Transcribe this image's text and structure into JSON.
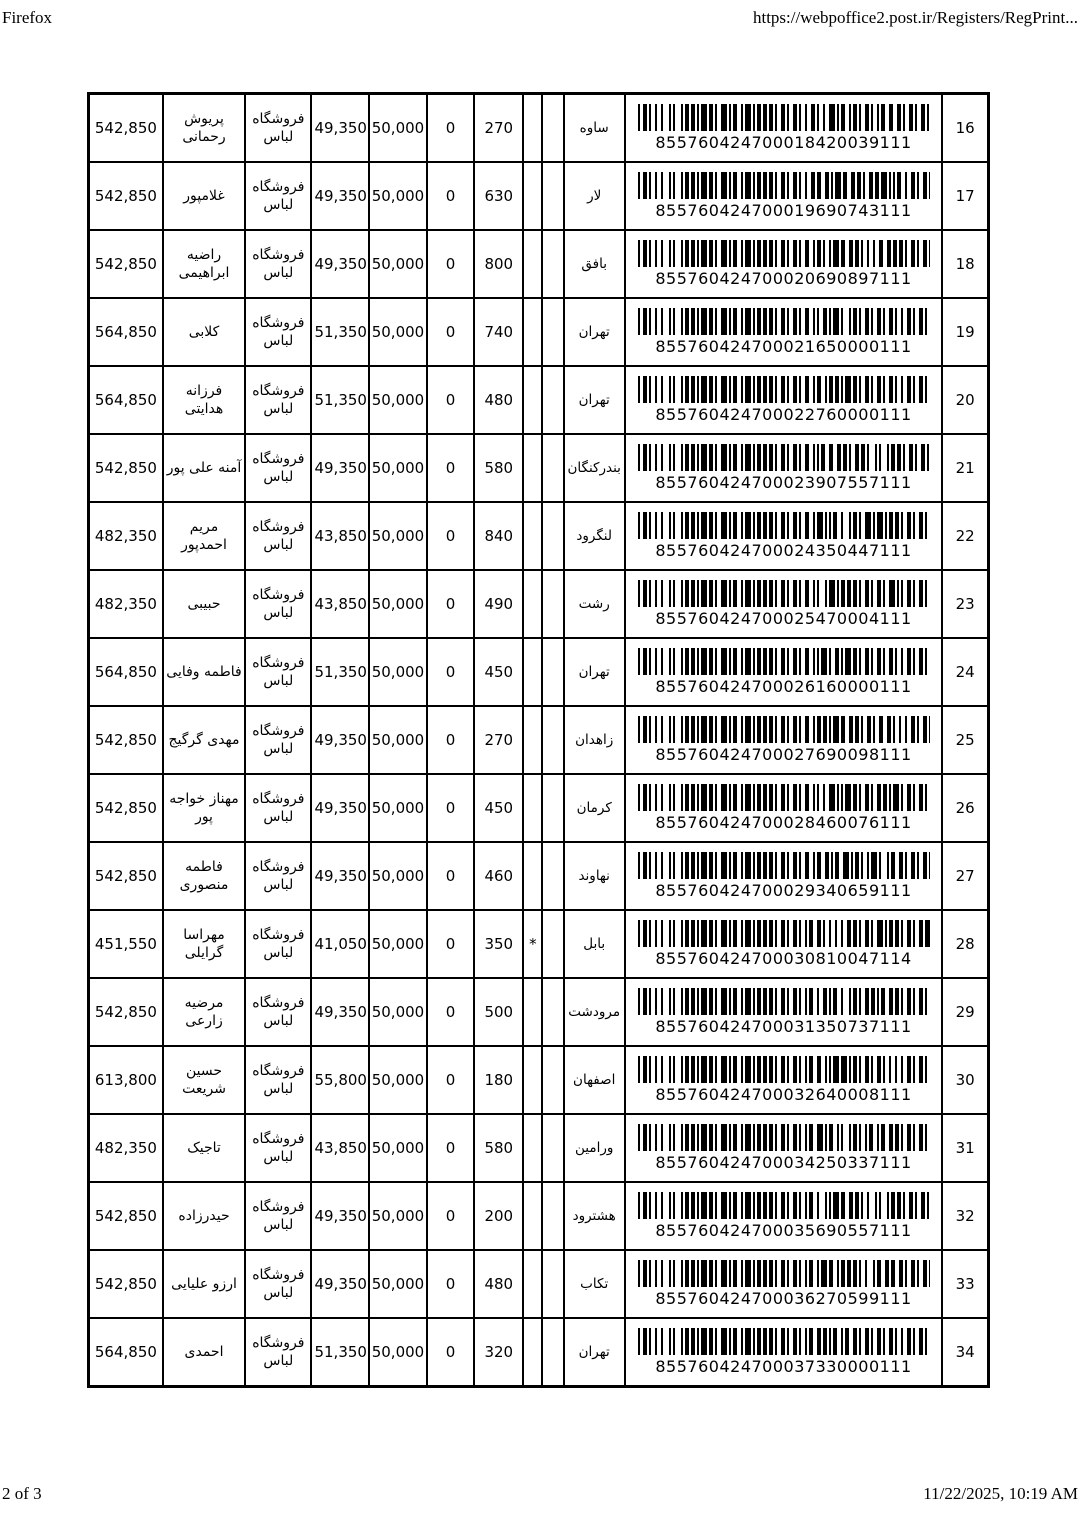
{
  "colors": {
    "border": "#000000",
    "text": "#000000",
    "background": "#ffffff"
  },
  "page_header": {
    "app_name": "Firefox",
    "url": "https://webpoffice2.post.ir/Registers/RegPrint..."
  },
  "page_footer": {
    "page_info": "2 of 3",
    "datetime": "11/22/2025, 10:19 AM"
  },
  "table": {
    "rows": [
      {
        "no": "16",
        "total": "542,850",
        "name": "پریوش رحمانی",
        "store": "فروشگاه لباس",
        "postage": "49,350",
        "insured": "50,000",
        "vat": "0",
        "weight": "270",
        "mark": "",
        "city": "ساوه",
        "barcode": "855760424700018420039111"
      },
      {
        "no": "17",
        "total": "542,850",
        "name": "غلامپور",
        "store": "فروشگاه لباس",
        "postage": "49,350",
        "insured": "50,000",
        "vat": "0",
        "weight": "630",
        "mark": "",
        "city": "لار",
        "barcode": "855760424700019690743111"
      },
      {
        "no": "18",
        "total": "542,850",
        "name": "راضیه ابراهیمی",
        "store": "فروشگاه لباس",
        "postage": "49,350",
        "insured": "50,000",
        "vat": "0",
        "weight": "800",
        "mark": "",
        "city": "بافق",
        "barcode": "855760424700020690897111"
      },
      {
        "no": "19",
        "total": "564,850",
        "name": "کلابی",
        "store": "فروشگاه لباس",
        "postage": "51,350",
        "insured": "50,000",
        "vat": "0",
        "weight": "740",
        "mark": "",
        "city": "تهران",
        "barcode": "855760424700021650000111"
      },
      {
        "no": "20",
        "total": "564,850",
        "name": "فرزانه هدایتی",
        "store": "فروشگاه لباس",
        "postage": "51,350",
        "insured": "50,000",
        "vat": "0",
        "weight": "480",
        "mark": "",
        "city": "تهران",
        "barcode": "855760424700022760000111"
      },
      {
        "no": "21",
        "total": "542,850",
        "name": "آمنه علی پور",
        "store": "فروشگاه لباس",
        "postage": "49,350",
        "insured": "50,000",
        "vat": "0",
        "weight": "580",
        "mark": "",
        "city": "بندرکنگان",
        "barcode": "855760424700023907557111"
      },
      {
        "no": "22",
        "total": "482,350",
        "name": "مریم احمدپور",
        "store": "فروشگاه لباس",
        "postage": "43,850",
        "insured": "50,000",
        "vat": "0",
        "weight": "840",
        "mark": "",
        "city": "لنگرود",
        "barcode": "855760424700024350447111"
      },
      {
        "no": "23",
        "total": "482,350",
        "name": "حبیبی",
        "store": "فروشگاه لباس",
        "postage": "43,850",
        "insured": "50,000",
        "vat": "0",
        "weight": "490",
        "mark": "",
        "city": "رشت",
        "barcode": "855760424700025470004111"
      },
      {
        "no": "24",
        "total": "564,850",
        "name": "فاطمه وفایی",
        "store": "فروشگاه لباس",
        "postage": "51,350",
        "insured": "50,000",
        "vat": "0",
        "weight": "450",
        "mark": "",
        "city": "تهران",
        "barcode": "855760424700026160000111"
      },
      {
        "no": "25",
        "total": "542,850",
        "name": "مهدی گرگیج",
        "store": "فروشگاه لباس",
        "postage": "49,350",
        "insured": "50,000",
        "vat": "0",
        "weight": "270",
        "mark": "",
        "city": "زاهدان",
        "barcode": "855760424700027690098111"
      },
      {
        "no": "26",
        "total": "542,850",
        "name": "مهناز خواجه پور",
        "store": "فروشگاه لباس",
        "postage": "49,350",
        "insured": "50,000",
        "vat": "0",
        "weight": "450",
        "mark": "",
        "city": "کرمان",
        "barcode": "855760424700028460076111"
      },
      {
        "no": "27",
        "total": "542,850",
        "name": "فاطمه منصوری",
        "store": "فروشگاه لباس",
        "postage": "49,350",
        "insured": "50,000",
        "vat": "0",
        "weight": "460",
        "mark": "",
        "city": "نهاوند",
        "barcode": "855760424700029340659111"
      },
      {
        "no": "28",
        "total": "451,550",
        "name": "مهراسا گرایلی",
        "store": "فروشگاه لباس",
        "postage": "41,050",
        "insured": "50,000",
        "vat": "0",
        "weight": "350",
        "mark": "*",
        "city": "بابل",
        "barcode": "855760424700030810047114"
      },
      {
        "no": "29",
        "total": "542,850",
        "name": "مرضیه زارعی",
        "store": "فروشگاه لباس",
        "postage": "49,350",
        "insured": "50,000",
        "vat": "0",
        "weight": "500",
        "mark": "",
        "city": "مرودشت",
        "barcode": "855760424700031350737111"
      },
      {
        "no": "30",
        "total": "613,800",
        "name": "حسین شریعت",
        "store": "فروشگاه لباس",
        "postage": "55,800",
        "insured": "50,000",
        "vat": "0",
        "weight": "180",
        "mark": "",
        "city": "اصفهان",
        "barcode": "855760424700032640008111"
      },
      {
        "no": "31",
        "total": "482,350",
        "name": "تاجیک",
        "store": "فروشگاه لباس",
        "postage": "43,850",
        "insured": "50,000",
        "vat": "0",
        "weight": "580",
        "mark": "",
        "city": "ورامین",
        "barcode": "855760424700034250337111"
      },
      {
        "no": "32",
        "total": "542,850",
        "name": "حیدرزاده",
        "store": "فروشگاه لباس",
        "postage": "49,350",
        "insured": "50,000",
        "vat": "0",
        "weight": "200",
        "mark": "",
        "city": "هشترود",
        "barcode": "855760424700035690557111"
      },
      {
        "no": "33",
        "total": "542,850",
        "name": "ارزو علیایی",
        "store": "فروشگاه لباس",
        "postage": "49,350",
        "insured": "50,000",
        "vat": "0",
        "weight": "480",
        "mark": "",
        "city": "تکاب",
        "barcode": "855760424700036270599111"
      },
      {
        "no": "34",
        "total": "564,850",
        "name": "احمدی",
        "store": "فروشگاه لباس",
        "postage": "51,350",
        "insured": "50,000",
        "vat": "0",
        "weight": "320",
        "mark": "",
        "city": "تهران",
        "barcode": "855760424700037330000111"
      }
    ]
  }
}
